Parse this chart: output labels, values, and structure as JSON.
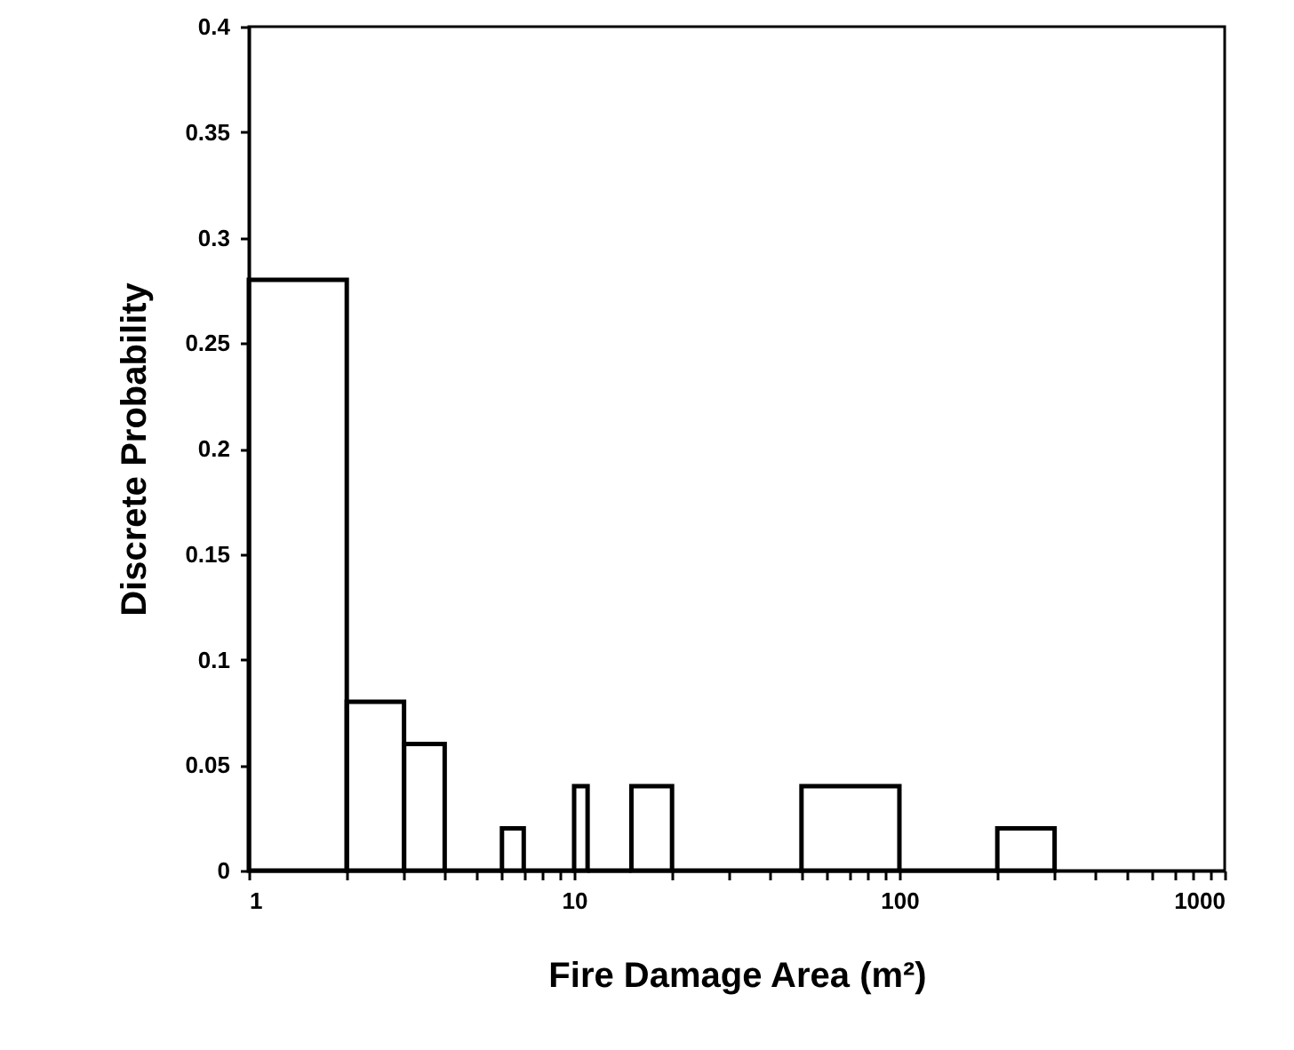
{
  "chart_data": {
    "type": "histogram",
    "xlabel": "Fire Damage Area (m²)",
    "ylabel": "Discrete Probability",
    "bins": [
      1,
      2,
      3,
      4,
      6,
      7,
      10,
      11,
      15,
      20,
      50,
      100,
      200,
      300
    ],
    "values": [
      0.28,
      0.08,
      0.06,
      0,
      0.02,
      0,
      0.04,
      0,
      0.04,
      0,
      0.04,
      0,
      0.02
    ],
    "color": "#000000",
    "log": "x",
    "xlim": [
      1,
      1000
    ],
    "xticks": [
      1,
      {
        "value": 2,
        "label": null
      },
      {
        "value": 3,
        "label": null
      },
      {
        "value": 4,
        "label": null
      },
      {
        "value": 5,
        "label": null
      },
      {
        "value": 6,
        "label": null
      },
      {
        "value": 7,
        "label": null
      },
      {
        "value": 8,
        "label": null
      },
      {
        "value": 9,
        "label": null
      },
      10,
      {
        "value": 20,
        "label": null
      },
      {
        "value": 30,
        "label": null
      },
      {
        "value": 40,
        "label": null
      },
      {
        "value": 50,
        "label": null
      },
      {
        "value": 60,
        "label": null
      },
      {
        "value": 70,
        "label": null
      },
      {
        "value": 80,
        "label": null
      },
      {
        "value": 90,
        "label": null
      },
      100,
      {
        "value": 200,
        "label": null
      },
      {
        "value": 300,
        "label": null
      },
      {
        "value": 400,
        "label": null
      },
      {
        "value": 500,
        "label": null
      },
      {
        "value": 600,
        "label": null
      },
      {
        "value": 700,
        "label": null
      },
      {
        "value": 800,
        "label": null
      },
      {
        "value": 900,
        "label": null
      },
      1000
    ],
    "ylim": [
      0,
      0.4
    ],
    "yticks": [
      0,
      0.05,
      0.1,
      0.15,
      0.2,
      0.25,
      0.3,
      0.35,
      0.4
    ],
    "grid": false
  }
}
